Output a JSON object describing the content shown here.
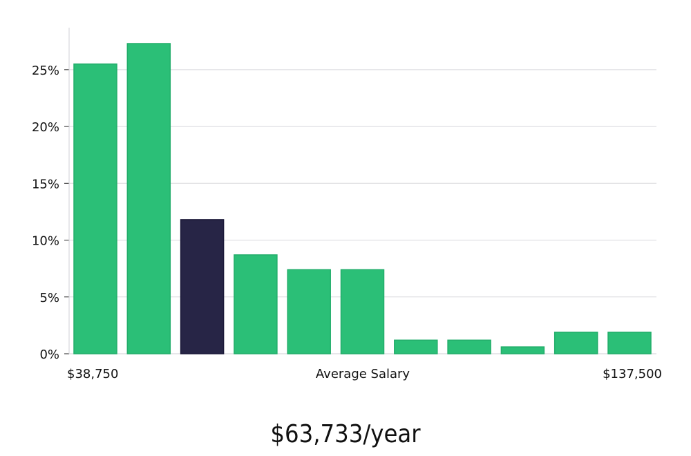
{
  "chart_data": {
    "type": "bar",
    "values": [
      25.5,
      27.3,
      11.8,
      8.7,
      7.4,
      7.4,
      1.2,
      1.2,
      0.6,
      1.9,
      1.9
    ],
    "highlight_index": 2,
    "ylim": [
      0,
      28.7
    ],
    "yticks": [
      0,
      5,
      10,
      15,
      20,
      25
    ],
    "ytick_suffix": "%",
    "xlabel": "Average Salary",
    "x_min_label": "$38,750",
    "x_max_label": "$137,500",
    "grid": true,
    "colors": {
      "bar": "#2bbf77",
      "highlight": "#272546",
      "grid": "#d7d7dc",
      "axis": "#cfcfd4"
    }
  },
  "headline": "$63,733/year"
}
